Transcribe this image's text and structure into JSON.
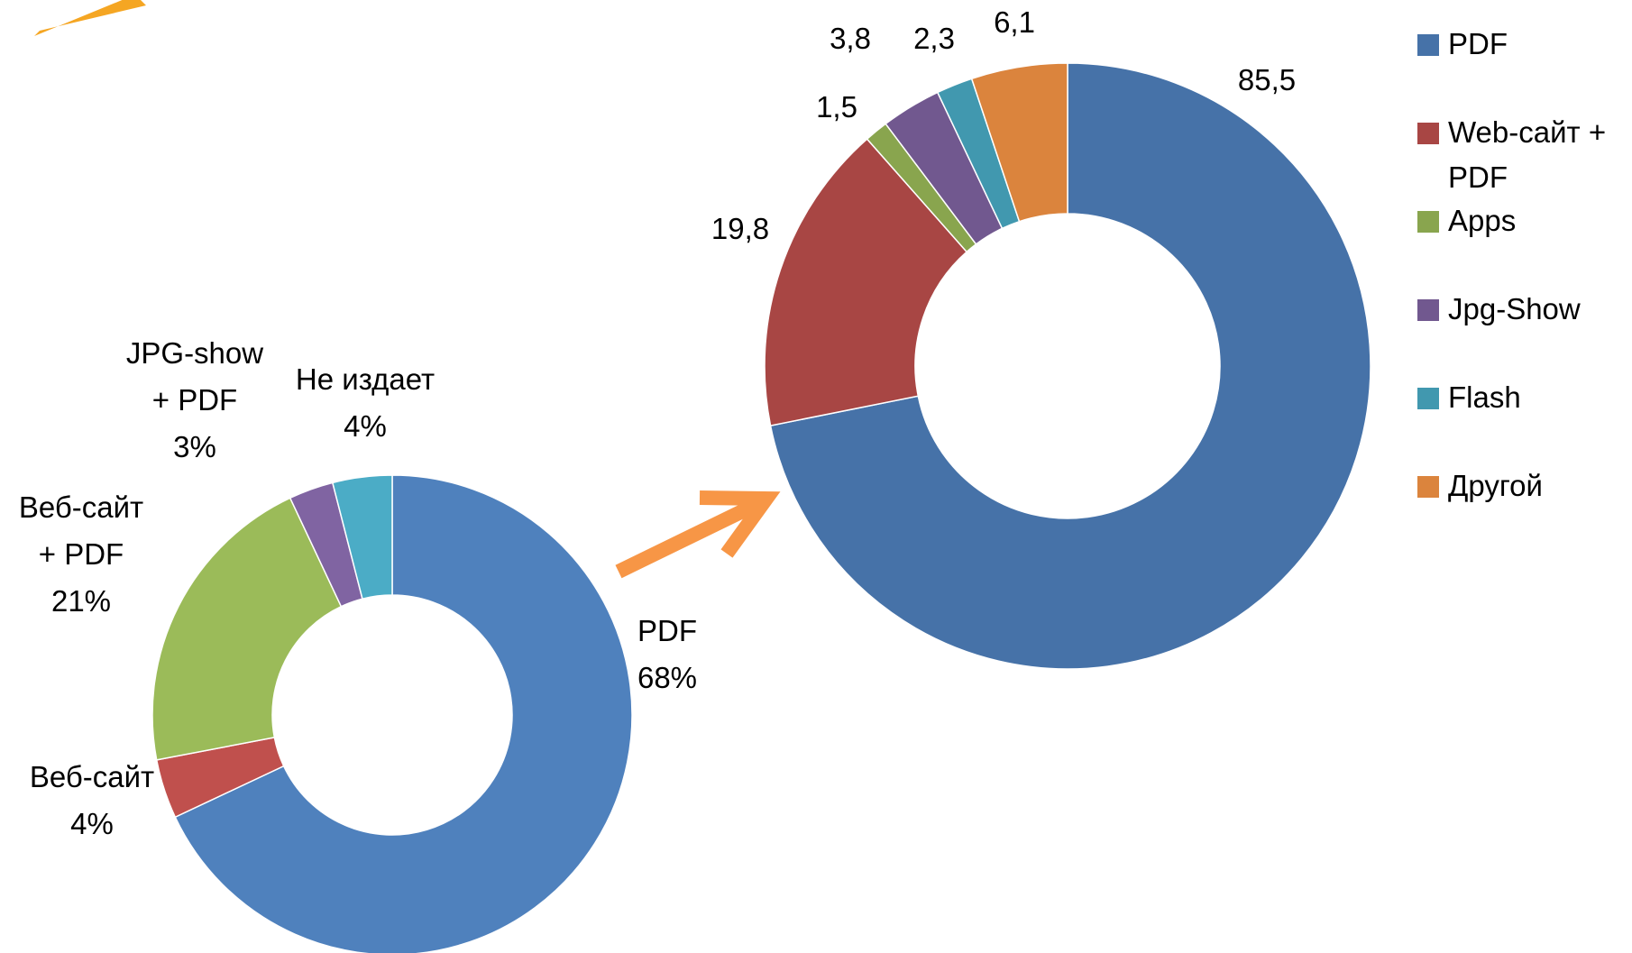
{
  "chart_data": [
    {
      "type": "donut",
      "categories": [
        "PDF",
        "Веб-сайт",
        "Веб-сайт + PDF",
        "JPG-show + PDF",
        "Не издает"
      ],
      "values": [
        68,
        4,
        21,
        3,
        4
      ],
      "value_labels": [
        "68%",
        "4%",
        "21%",
        "3%",
        "4%"
      ],
      "colors": [
        "#4f81bd",
        "#c0504d",
        "#9bbb59",
        "#8064a2",
        "#4bacc6"
      ]
    },
    {
      "type": "donut",
      "categories": [
        "PDF",
        "Web-сайт + PDF",
        "Apps",
        "Jpg-Show",
        "Flash",
        "Другой"
      ],
      "values": [
        85.5,
        19.8,
        1.5,
        3.8,
        2.3,
        6.1
      ],
      "value_labels": [
        "85,5",
        "19,8",
        "1,5",
        "3,8",
        "2,3",
        "6,1"
      ],
      "colors": [
        "#4672a8",
        "#a84644",
        "#89a54e",
        "#71588f",
        "#4198af",
        "#db843d"
      ],
      "legend": "right"
    }
  ]
}
